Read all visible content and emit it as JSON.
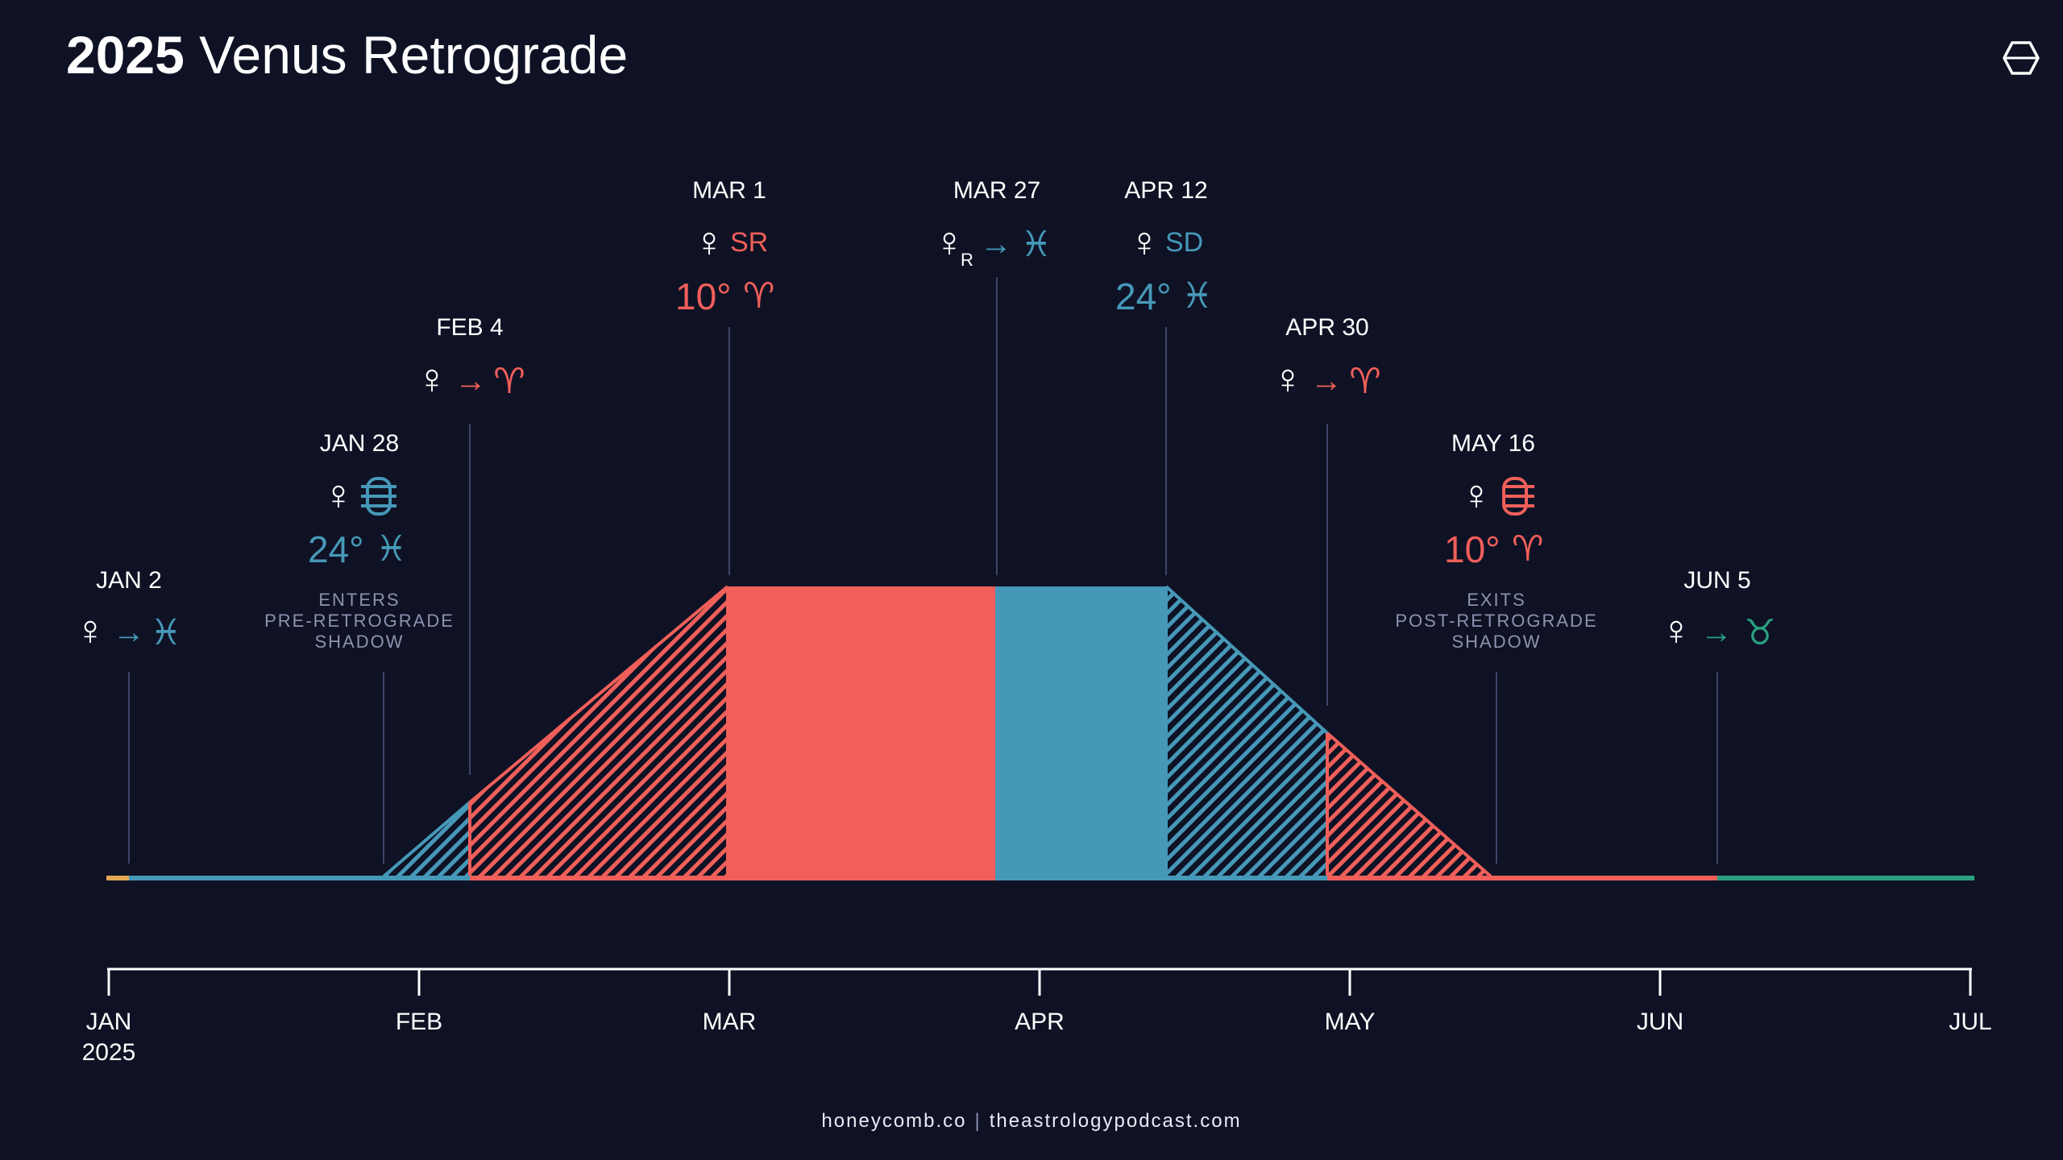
{
  "title": {
    "year": "2025",
    "text": "Venus Retrograde"
  },
  "footer": {
    "site_a": "honeycomb.co",
    "separator": "|",
    "site_b": "theastrologypodcast.com"
  },
  "colors": {
    "background": "#0f1224",
    "retrograde_red": "#f05f5a",
    "pisces_blue": "#4698b8",
    "taurus_green": "#2a9f7f",
    "capricorn_orange": "#e2a654",
    "label_white": "#ffffff",
    "muted_label": "#8d92b0"
  },
  "timeline": {
    "months": [
      "JAN",
      "FEB",
      "MAR",
      "APR",
      "MAY",
      "JUN",
      "JUL"
    ],
    "year_label": "2025"
  },
  "events": [
    {
      "date": "JAN 2",
      "glyph": "venus",
      "action": "arrow",
      "sign": "pisces",
      "color": "blue"
    },
    {
      "date": "JAN 28",
      "glyph": "venus",
      "action": "shadow-enter-icon",
      "degree": "24°",
      "sign": "pisces",
      "note": [
        "ENTERS",
        "PRE-RETROGRADE",
        "SHADOW"
      ],
      "color": "blue"
    },
    {
      "date": "FEB 4",
      "glyph": "venus",
      "action": "arrow",
      "sign": "aries",
      "color": "red"
    },
    {
      "date": "MAR 1",
      "glyph": "venus",
      "status": "SR",
      "degree": "10°",
      "sign": "aries",
      "color": "red"
    },
    {
      "date": "MAR 27",
      "glyph": "venus-retrograde",
      "subscript": "R",
      "action": "arrow",
      "sign": "pisces",
      "color": "blue"
    },
    {
      "date": "APR 12",
      "glyph": "venus",
      "status": "SD",
      "degree": "24°",
      "sign": "pisces",
      "color": "blue"
    },
    {
      "date": "APR 30",
      "glyph": "venus",
      "action": "arrow",
      "sign": "aries",
      "color": "red"
    },
    {
      "date": "MAY 16",
      "glyph": "venus",
      "action": "shadow-exit-icon",
      "degree": "10°",
      "sign": "aries",
      "note": [
        "EXITS",
        "POST-RETROGRADE",
        "SHADOW"
      ],
      "color": "red"
    },
    {
      "date": "JUN 5",
      "glyph": "venus",
      "action": "arrow",
      "sign": "taurus",
      "color": "green"
    }
  ],
  "symbols": {
    "aries": "♈",
    "pisces": "♓",
    "taurus": "♉",
    "venus": "♀",
    "arrow": "→"
  }
}
